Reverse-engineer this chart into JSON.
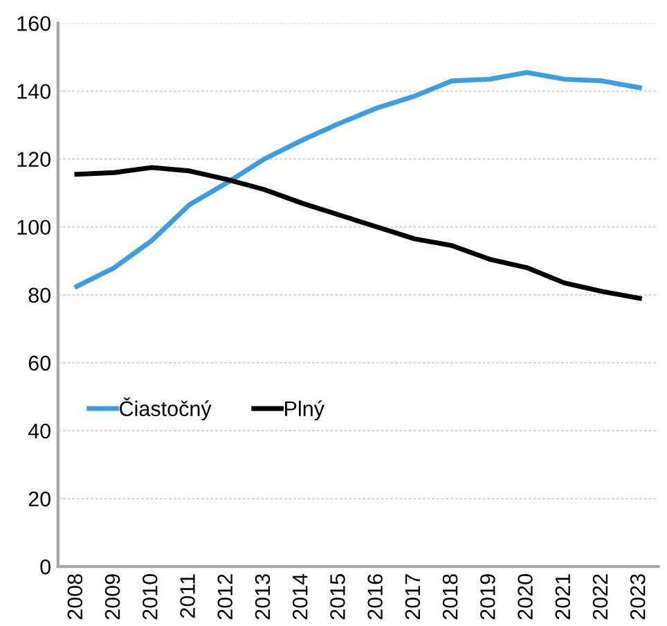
{
  "chart_data": {
    "type": "line",
    "categories": [
      "2008",
      "2009",
      "2010",
      "2011",
      "2012",
      "2013",
      "2014",
      "2015",
      "2016",
      "2017",
      "2018",
      "2019",
      "2020",
      "2021",
      "2022",
      "2023"
    ],
    "series": [
      {
        "name": "Čiastočný",
        "color": "#3a9ee0",
        "values": [
          82.5,
          88,
          96,
          106.5,
          113,
          120,
          125.5,
          130.5,
          135,
          138.5,
          143,
          143.5,
          145.5,
          143.5,
          143,
          141
        ]
      },
      {
        "name": "Plný",
        "color": "#000000",
        "values": [
          115.5,
          116,
          117.5,
          116.5,
          114,
          111,
          107,
          103.5,
          100,
          96.5,
          94.5,
          90.5,
          88,
          83.5,
          81,
          79
        ]
      }
    ],
    "ylim": [
      0,
      160
    ],
    "yticks": [
      0,
      20,
      40,
      60,
      80,
      100,
      120,
      140,
      160
    ],
    "grid": "y",
    "legend": "left",
    "marker": "none",
    "line_style": "solid"
  }
}
